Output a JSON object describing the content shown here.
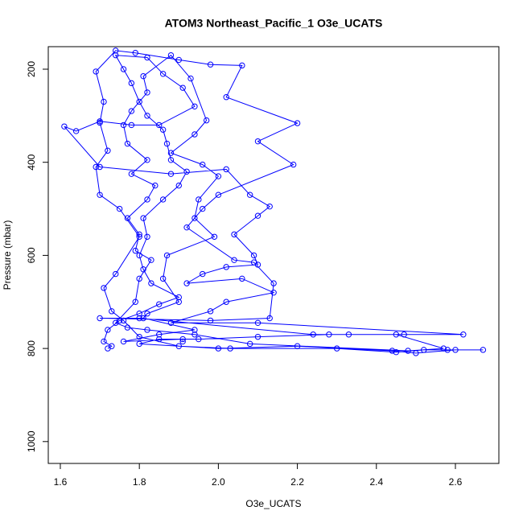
{
  "chart_data": {
    "type": "line",
    "title": "ATOM3 Northeast_Pacific_1 O3e_UCATS",
    "x_label": "O3e_UCATS",
    "y_label": "Pressure (mbar)",
    "xlim": [
      1.5695,
      2.71
    ],
    "ylim": [
      1047,
      151.6
    ],
    "y_reversed": true,
    "xticks": [
      1.6,
      1.8,
      {
        "value": 2,
        "label": "2.0"
      },
      2.2,
      2.4,
      2.6
    ],
    "yticks": [
      200,
      400,
      600,
      800,
      1000
    ],
    "grid": false,
    "markers": "open-circle",
    "x": [
      1.72,
      1.73,
      1.71,
      1.72,
      1.75,
      1.8,
      1.85,
      1.9,
      1.83,
      1.81,
      1.8,
      1.82,
      1.81,
      1.86,
      1.9,
      1.92,
      1.88,
      1.87,
      1.86,
      1.82,
      1.8,
      1.78,
      1.76,
      1.74,
      1.82,
      1.86,
      1.91,
      1.94,
      1.85,
      1.78,
      1.7,
      1.64,
      1.61,
      1.7,
      1.88,
      2.02,
      2.08,
      2.13,
      2.1,
      2.04,
      2.09,
      2.1,
      2.02,
      1.96,
      1.92,
      2.06,
      2.14,
      2.02,
      1.98,
      1.88,
      2.1,
      2.62,
      2.47,
      2.28,
      2.1,
      1.95,
      1.85,
      1.8,
      2.0,
      2.2,
      2.44,
      2.5,
      2.6,
      2.67,
      2.58,
      2.52,
      2.45,
      2.3,
      2.03,
      1.9,
      1.8,
      1.76,
      1.73,
      1.71,
      1.74,
      1.8,
      1.75,
      1.7,
      1.69,
      1.72,
      1.7,
      1.71,
      1.69,
      1.74,
      1.79,
      1.9,
      1.98,
      2.06,
      2.02,
      2.2,
      2.1,
      2.19,
      2.0,
      1.96,
      1.92,
      2.04,
      2.09,
      2.14,
      2.13,
      1.98,
      1.7,
      1.8,
      2.24,
      2.33,
      2.45,
      2.57,
      2.48,
      2.08,
      1.94,
      1.82,
      1.77,
      1.74,
      1.79,
      1.8,
      1.83,
      1.79,
      1.8,
      1.77,
      1.82,
      1.84,
      1.78,
      1.82,
      1.77,
      1.76,
      1.78,
      1.82,
      1.81,
      1.88,
      1.93,
      1.97,
      1.94,
      1.88,
      1.96,
      2.0,
      1.95,
      1.94,
      1.99,
      1.87,
      1.86,
      1.9,
      1.82,
      1.81,
      1.94,
      1.85,
      1.76,
      1.91,
      1.91
    ],
    "series": [
      {
        "name": "O3e_UCATS",
        "color": "#0000ff",
        "values": [
          800,
          795,
          785,
          760,
          740,
          725,
          705,
          690,
          660,
          630,
          600,
          560,
          520,
          480,
          450,
          420,
          395,
          360,
          330,
          300,
          270,
          230,
          200,
          170,
          175,
          210,
          240,
          280,
          320,
          320,
          312,
          333,
          323,
          410,
          425,
          415,
          470,
          495,
          515,
          555,
          600,
          620,
          625,
          640,
          660,
          650,
          680,
          700,
          720,
          745,
          745,
          770,
          770,
          770,
          775,
          780,
          780,
          790,
          800,
          795,
          805,
          810,
          803,
          803,
          803,
          803,
          808,
          800,
          800,
          795,
          775,
          740,
          720,
          670,
          640,
          560,
          500,
          470,
          410,
          375,
          315,
          270,
          205,
          160,
          165,
          180,
          190,
          192,
          260,
          316,
          355,
          405,
          470,
          500,
          540,
          610,
          615,
          660,
          735,
          740,
          735,
          735,
          770,
          770,
          770,
          800,
          805,
          790,
          770,
          760,
          755,
          745,
          700,
          650,
          610,
          590,
          555,
          520,
          480,
          450,
          425,
          395,
          360,
          320,
          290,
          250,
          215,
          170,
          220,
          310,
          340,
          380,
          405,
          430,
          480,
          520,
          560,
          600,
          650,
          700,
          725,
          735,
          760,
          770,
          785,
          780,
          785
        ]
      }
    ]
  }
}
